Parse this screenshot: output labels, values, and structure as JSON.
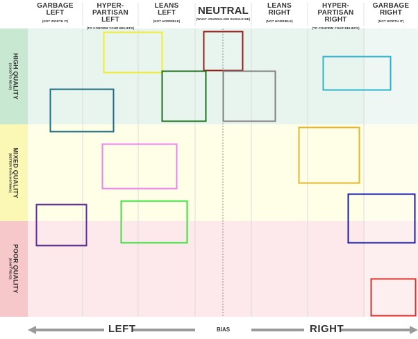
{
  "columns": [
    {
      "title": "GARBAGE\nLEFT",
      "subtitle": "(NOT WORTH IT)"
    },
    {
      "title": "HYPER-PARTISAN\nLEFT",
      "subtitle": "(TO CONFIRM YOUR BELIEFS)"
    },
    {
      "title": "LEANS\nLEFT",
      "subtitle": "(NOT HORRIBLE)"
    },
    {
      "title": "NEUTRAL",
      "subtitle": "(WHAT JOURNALISM SHOULD BE)"
    },
    {
      "title": "LEANS\nRIGHT",
      "subtitle": "(NOT HORRIBLE)"
    },
    {
      "title": "HYPER-PARTISAN\nRIGHT",
      "subtitle": "(TO CONFIRM YOUR BELIEFS)"
    },
    {
      "title": "GARBAGE\nRIGHT",
      "subtitle": "(NOT WORTH IT)"
    }
  ],
  "rows": [
    {
      "title": "HIGH QUALITY",
      "subtitle": "(GOOD TO READ)",
      "color": "#e6f4ee",
      "band_color": "#c9e8d3"
    },
    {
      "title": "MIXED QUALITY",
      "subtitle": "(BETTER THAN NOTHING)",
      "color": "#fffde6",
      "band_color": "#fbf6b5"
    },
    {
      "title": "POOR QUALITY",
      "subtitle": "(DON'T READ)",
      "color": "#fde8ea",
      "band_color": "#f7c8c9"
    }
  ],
  "axis": {
    "left": "LEFT",
    "center": "BIAS",
    "right": "RIGHT"
  },
  "colors": {
    "yellow": "#f2ec2b",
    "maroon": "#9c1a1a",
    "cyan": "#2ab3cc",
    "teal": "#1e6e86",
    "darkgreen": "#1b6f1b",
    "gray": "#808080",
    "orange": "#e8b52a",
    "pink": "#ee82ee",
    "purple": "#5c2d91",
    "green": "#39e039",
    "blue": "#1a1aa8",
    "red": "#e0302a"
  }
}
